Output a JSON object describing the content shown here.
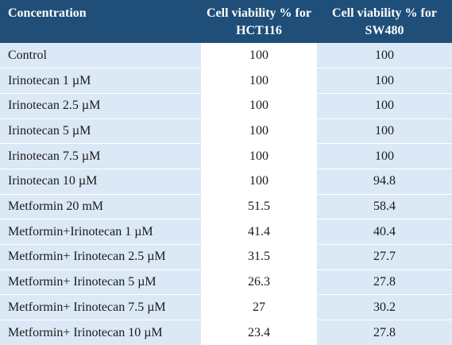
{
  "table": {
    "headers": [
      "Concentration",
      "Cell viability % for HCT116",
      "Cell viability % for SW480"
    ],
    "rows": [
      {
        "concentration": "Control",
        "hct116": "100",
        "sw480": "100"
      },
      {
        "concentration": "Irinotecan 1 µM",
        "hct116": "100",
        "sw480": "100"
      },
      {
        "concentration": "Irinotecan 2.5 µM",
        "hct116": "100",
        "sw480": "100"
      },
      {
        "concentration": "Irinotecan 5 µM",
        "hct116": "100",
        "sw480": "100"
      },
      {
        "concentration": "Irinotecan 7.5 µM",
        "hct116": "100",
        "sw480": "100"
      },
      {
        "concentration": "Irinotecan 10 µM",
        "hct116": "100",
        "sw480": "94.8"
      },
      {
        "concentration": "Metformin 20 mM",
        "hct116": "51.5",
        "sw480": "58.4"
      },
      {
        "concentration": "Metformin+Irinotecan 1 µM",
        "hct116": "41.4",
        "sw480": "40.4"
      },
      {
        "concentration": "Metformin+ Irinotecan 2.5 µM",
        "hct116": "31.5",
        "sw480": "27.7"
      },
      {
        "concentration": "Metformin+ Irinotecan 5 µM",
        "hct116": "26.3",
        "sw480": "27.8"
      },
      {
        "concentration": "Metformin+ Irinotecan 7.5 µM",
        "hct116": "27",
        "sw480": "30.2"
      },
      {
        "concentration": "Metformin+ Irinotecan 10 µM",
        "hct116": "23.4",
        "sw480": "27.8"
      }
    ]
  },
  "colors": {
    "header_bg": "#1f4e79",
    "header_text": "#ffffff",
    "shaded_cell": "#dbe8f6",
    "plain_cell": "#ffffff"
  }
}
